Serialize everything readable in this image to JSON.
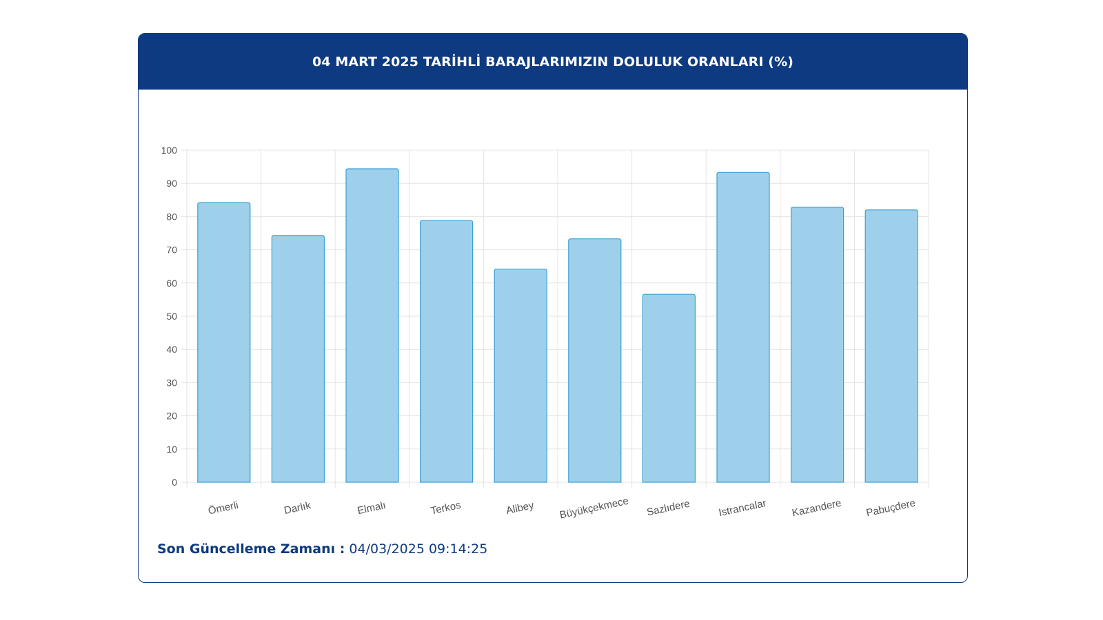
{
  "header": {
    "title": "04 MART 2025 TARİHLİ BARAJLARIMIZIN DOLULUK ORANLARI (%)"
  },
  "footer": {
    "label": "Son Güncelleme Zamanı :",
    "value": "04/03/2025 09:14:25"
  },
  "colors": {
    "header_bg": "#0d3a80",
    "bar_fill": "#9ed0ec",
    "bar_stroke": "#3a9fd2",
    "grid": "#e3e3e3",
    "tick_text": "#555555"
  },
  "chart_data": {
    "type": "bar",
    "title": "04 MART 2025 TARİHLİ BARAJLARIMIZIN DOLULUK ORANLARI (%)",
    "xlabel": "",
    "ylabel": "",
    "categories": [
      "Ömerli",
      "Darlık",
      "Elmalı",
      "Terkos",
      "Alibey",
      "Büyükçekmece",
      "Sazlıdere",
      "Istrancalar",
      "Kazandere",
      "Pabuçdere"
    ],
    "values": [
      84.2,
      74.3,
      94.4,
      78.8,
      64.2,
      73.3,
      56.6,
      93.3,
      82.8,
      82.0
    ],
    "ylim": [
      0,
      100
    ],
    "yticks": [
      0,
      10,
      20,
      30,
      40,
      50,
      60,
      70,
      80,
      90,
      100
    ],
    "grid": true,
    "legend": "none"
  }
}
